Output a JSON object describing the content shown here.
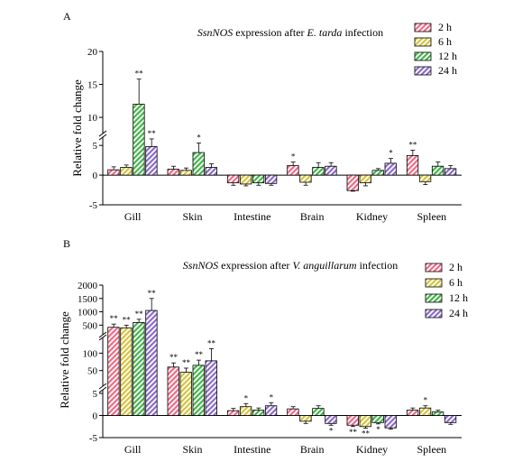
{
  "chart_data": [
    {
      "type": "bar",
      "panel": "A",
      "title": "SsnNOS expression after E. tarda infection",
      "title_parts": [
        {
          "text": "SsnNOS",
          "italic": true
        },
        {
          "text": " expression after ",
          "italic": false
        },
        {
          "text": "E. tarda",
          "italic": true
        },
        {
          "text": " infection",
          "italic": false
        }
      ],
      "xlabel": "",
      "ylabel": "Relative fold change",
      "categories": [
        "Gill",
        "Skin",
        "Intestine",
        "Brain",
        "Kidney",
        "Spleen"
      ],
      "series": [
        {
          "name": "2 h",
          "color": "#f06a86",
          "values": [
            0.9,
            1.0,
            -1.3,
            1.6,
            -2.6,
            3.3
          ],
          "errors": [
            0.5,
            0.5,
            0.4,
            0.6,
            0.1,
            0.9
          ],
          "sig": [
            "",
            "",
            "",
            "*",
            "",
            "**"
          ]
        },
        {
          "name": "6 h",
          "color": "#d4c43a",
          "values": [
            1.3,
            0.8,
            -1.5,
            -1.2,
            -1.3,
            -1.1
          ],
          "errors": [
            0.4,
            0.4,
            0.3,
            0.5,
            0.5,
            0.5
          ],
          "sig": [
            "",
            "",
            "",
            "",
            "",
            ""
          ]
        },
        {
          "name": "12 h",
          "color": "#42b54a",
          "values": [
            12.0,
            3.8,
            -1.3,
            1.3,
            0.8,
            1.5
          ],
          "errors": [
            3.8,
            1.6,
            0.4,
            0.8,
            0.3,
            0.7
          ],
          "sig": [
            "**",
            "*",
            "",
            "",
            "",
            ""
          ]
        },
        {
          "name": "24 h",
          "color": "#8c6bc8",
          "values": [
            4.8,
            1.3,
            -1.4,
            1.5,
            2.0,
            1.1
          ],
          "errors": [
            1.3,
            0.6,
            0.3,
            0.6,
            0.8,
            0.5
          ],
          "sig": [
            "**",
            "",
            "",
            "",
            "*",
            ""
          ]
        }
      ],
      "y_segments": [
        [
          -5,
          7
        ],
        [
          7,
          20
        ]
      ],
      "yticks": [
        -5,
        0,
        5,
        10,
        15,
        20
      ]
    },
    {
      "type": "bar",
      "panel": "B",
      "title": "SsnNOS expression after V. anguillarum infection",
      "title_parts": [
        {
          "text": "SsnNOS",
          "italic": true
        },
        {
          "text": " expression after ",
          "italic": false
        },
        {
          "text": "V. anguillarum",
          "italic": true
        },
        {
          "text": " infection",
          "italic": false
        }
      ],
      "xlabel": "",
      "ylabel": "Relative fold change",
      "categories": [
        "Gill",
        "Skin",
        "Intestine",
        "Brain",
        "Kidney",
        "Spleen"
      ],
      "series": [
        {
          "name": "2 h",
          "color": "#f06a86",
          "values": [
            420,
            60,
            1.1,
            1.5,
            -2.2,
            1.2
          ],
          "errors": [
            120,
            12,
            0.5,
            0.5,
            0.3,
            0.5
          ],
          "sig": [
            "**",
            "**",
            "",
            "",
            "**",
            ""
          ]
        },
        {
          "name": "6 h",
          "color": "#d4c43a",
          "values": [
            400,
            45,
            2.0,
            -1.3,
            -2.5,
            1.7
          ],
          "errors": [
            100,
            12,
            0.7,
            0.5,
            0.4,
            0.5
          ],
          "sig": [
            "**",
            "**",
            "*",
            "",
            "**",
            "*"
          ]
        },
        {
          "name": "12 h",
          "color": "#42b54a",
          "values": [
            600,
            65,
            1.2,
            1.6,
            -1.6,
            0.8
          ],
          "errors": [
            120,
            15,
            0.5,
            0.6,
            0.3,
            0.4
          ],
          "sig": [
            "**",
            "**",
            "",
            "",
            "*",
            ""
          ]
        },
        {
          "name": "24 h",
          "color": "#8c6bc8",
          "values": [
            1050,
            78,
            2.2,
            -1.8,
            -2.8,
            -1.6
          ],
          "errors": [
            450,
            35,
            0.7,
            0.4,
            0.3,
            0.4
          ],
          "sig": [
            "**",
            "**",
            "*",
            "*",
            "",
            ""
          ]
        }
      ],
      "y_segments": [
        [
          -5,
          5
        ],
        [
          5,
          140
        ],
        [
          140,
          2000
        ]
      ],
      "yticks": [
        -5,
        0,
        5,
        50,
        100,
        500,
        1000,
        1500,
        2000
      ]
    }
  ]
}
